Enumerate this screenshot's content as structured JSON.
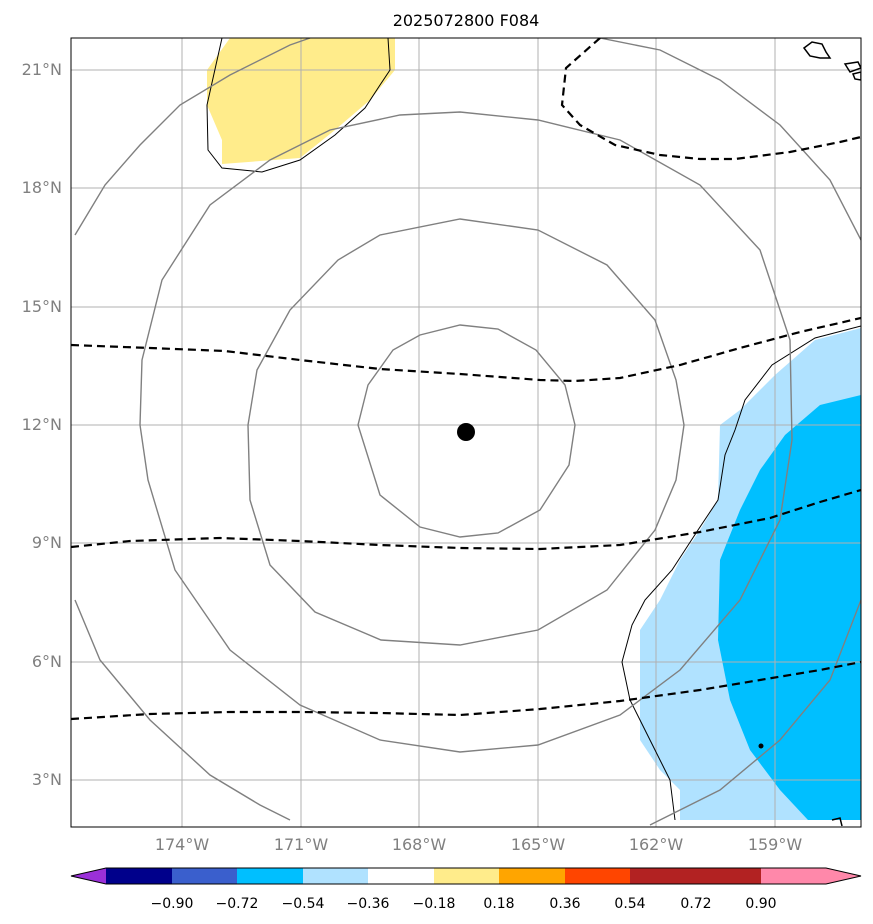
{
  "title": "2025072800 F084",
  "map": {
    "lat_labels": [
      "21°N",
      "18°N",
      "15°N",
      "12°N",
      "9°N",
      "6°N",
      "3°N"
    ],
    "lon_labels": [
      "174°W",
      "171°W",
      "168°W",
      "165°W",
      "162°W",
      "159°W"
    ],
    "center_marker": {
      "name": "storm-center",
      "lat": 11.8,
      "lon": -166.2
    }
  },
  "colorbar": {
    "ticks": [
      "−0.90",
      "−0.72",
      "−0.54",
      "−0.36",
      "−0.18",
      "0.18",
      "0.36",
      "0.54",
      "0.72",
      "0.90"
    ],
    "colors": [
      "#9b30d8",
      "#00008b",
      "#3a5fcd",
      "#00bfff",
      "#b0e2ff",
      "#ffffff",
      "#ffec8b",
      "#ffa500",
      "#ff4500",
      "#b22222",
      "#ff88aa"
    ]
  }
}
